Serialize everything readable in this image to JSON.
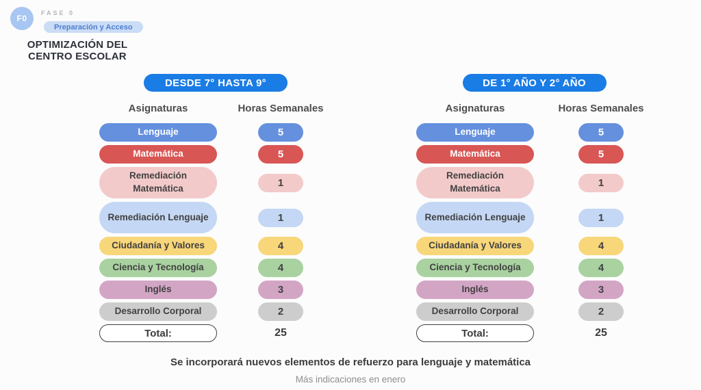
{
  "phase": {
    "badge": "F0",
    "label": "FASE 0",
    "pill": "Preparación y Acceso"
  },
  "title": {
    "line1": "OPTIMIZACIÓN DEL",
    "line2": "CENTRO ESCOLAR"
  },
  "tables": [
    {
      "header": "DESDE 7° HASTA 9°",
      "columns": {
        "subjects": "Asignaturas",
        "hours": "Horas Semanales"
      },
      "rows": [
        {
          "label": "Lenguaje",
          "hours": "5",
          "color": "blue",
          "light_text": true
        },
        {
          "label": "Matemática",
          "hours": "5",
          "color": "red",
          "light_text": true
        },
        {
          "label": "Remediación Matemática",
          "hours": "1",
          "color": "pink_light",
          "tall": true
        },
        {
          "label": "Remediación Lenguaje",
          "hours": "1",
          "color": "blue_light",
          "tall": true
        },
        {
          "label": "Ciudadanía y Valores",
          "hours": "4",
          "color": "yellow"
        },
        {
          "label": "Ciencia y Tecnología",
          "hours": "4",
          "color": "green"
        },
        {
          "label": "Inglés",
          "hours": "3",
          "color": "mauve"
        },
        {
          "label": "Desarrollo Corporal",
          "hours": "2",
          "color": "gray"
        }
      ],
      "total": {
        "label": "Total:",
        "value": "25"
      }
    },
    {
      "header": "DE 1° AÑO Y 2° AÑO",
      "columns": {
        "subjects": "Asignaturas",
        "hours": "Horas Semanales"
      },
      "rows": [
        {
          "label": "Lenguaje",
          "hours": "5",
          "color": "blue",
          "light_text": true
        },
        {
          "label": "Matemática",
          "hours": "5",
          "color": "red",
          "light_text": true
        },
        {
          "label": "Remediación Matemática",
          "hours": "1",
          "color": "pink_light",
          "tall": true
        },
        {
          "label": "Remediación Lenguaje",
          "hours": "1",
          "color": "blue_light",
          "tall": true
        },
        {
          "label": "Ciudadanía y Valores",
          "hours": "4",
          "color": "yellow"
        },
        {
          "label": "Ciencia y Tecnología",
          "hours": "4",
          "color": "green"
        },
        {
          "label": "Inglés",
          "hours": "3",
          "color": "mauve"
        },
        {
          "label": "Desarrollo Corporal",
          "hours": "2",
          "color": "gray"
        }
      ],
      "total": {
        "label": "Total:",
        "value": "25"
      }
    }
  ],
  "footer": {
    "note": "Se incorporará nuevos elementos de refuerzo para lenguaje y matemática",
    "subnote": "Más indicaciones en enero"
  },
  "colors": {
    "accent_blue": "#1a7ce5",
    "blue": "#6590de",
    "red": "#d85654",
    "pink_light": "#f3caca",
    "blue_light": "#c4d7f4",
    "yellow": "#f8d67a",
    "green": "#a9d2a0",
    "mauve": "#d3a5c5",
    "gray": "#cdcdcd",
    "dark_text": "#414141",
    "white_text": "#ffffff"
  }
}
